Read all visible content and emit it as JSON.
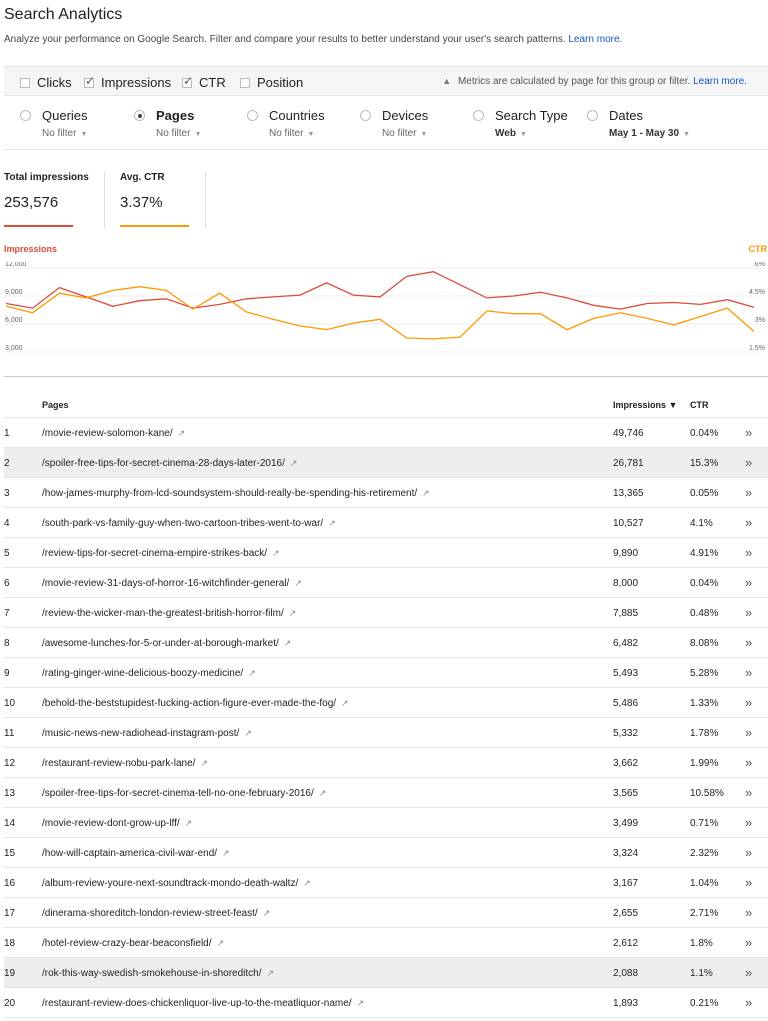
{
  "header": {
    "title": "Search Analytics",
    "subtitle": "Analyze your performance on Google Search. Filter and compare your results to better understand your user's search patterns.",
    "learn_more": "Learn more."
  },
  "metrics": {
    "items": [
      {
        "label": "Clicks",
        "checked": false
      },
      {
        "label": "Impressions",
        "checked": true
      },
      {
        "label": "CTR",
        "checked": true
      },
      {
        "label": "Position",
        "checked": false
      }
    ],
    "note": "Metrics are calculated by page for this group or filter.",
    "note_link": "Learn more."
  },
  "dimensions": [
    {
      "label": "Queries",
      "filter": "No filter",
      "selected": false
    },
    {
      "label": "Pages",
      "filter": "No filter",
      "selected": true
    },
    {
      "label": "Countries",
      "filter": "No filter",
      "selected": false
    },
    {
      "label": "Devices",
      "filter": "No filter",
      "selected": false
    },
    {
      "label": "Search Type",
      "filter": "Web",
      "selected": false
    },
    {
      "label": "Dates",
      "filter": "May 1 - May 30",
      "selected": false
    }
  ],
  "totals": {
    "impressions_label": "Total impressions",
    "impressions_value": "253,576",
    "ctr_label": "Avg. CTR",
    "ctr_value": "3.37%"
  },
  "colors": {
    "impressions": "#dd4b39",
    "ctr": "#ff9900",
    "link": "#1155cc"
  },
  "chart_data": {
    "type": "line",
    "left_axis_label": "Impressions",
    "right_axis_label": "CTR",
    "left_ticks": [
      "12,000",
      "9,000",
      "6,000",
      "3,000"
    ],
    "right_ticks": [
      "6%",
      "4.5%",
      "3%",
      "1.5%"
    ],
    "left_ylim": [
      3000,
      12000
    ],
    "right_ylim": [
      1.5,
      6
    ],
    "series": [
      {
        "name": "Impressions",
        "axis": "left",
        "values": [
          8200,
          7700,
          9900,
          8900,
          7900,
          8500,
          8700,
          7700,
          8100,
          8700,
          8900,
          9100,
          10400,
          9100,
          8900,
          11100,
          11600,
          10200,
          8800,
          9000,
          9400,
          8800,
          8000,
          7600,
          8200,
          8300,
          8100,
          8600,
          7800
        ]
      },
      {
        "name": "CTR",
        "axis": "left",
        "values": [
          7900,
          7200,
          9300,
          8800,
          9600,
          10000,
          9600,
          7600,
          9300,
          7300,
          6500,
          5800,
          5400,
          6100,
          6500,
          4500,
          4400,
          4600,
          7400,
          7100,
          7100,
          5400,
          6600,
          7200,
          6600,
          5900,
          6800,
          7700,
          5200
        ]
      }
    ]
  },
  "table": {
    "headers": {
      "pages": "Pages",
      "impressions": "Impressions ▼",
      "ctr": "CTR"
    },
    "rows": [
      {
        "n": "1",
        "page": "/movie-review-solomon-kane/",
        "impressions": "49,746",
        "ctr": "0.04%",
        "hl": false
      },
      {
        "n": "2",
        "page": "/spoiler-free-tips-for-secret-cinema-28-days-later-2016/",
        "impressions": "26,781",
        "ctr": "15.3%",
        "hl": true
      },
      {
        "n": "3",
        "page": "/how-james-murphy-from-lcd-soundsystem-should-really-be-spending-his-retirement/",
        "impressions": "13,365",
        "ctr": "0.05%",
        "hl": false
      },
      {
        "n": "4",
        "page": "/south-park-vs-family-guy-when-two-cartoon-tribes-went-to-war/",
        "impressions": "10,527",
        "ctr": "4.1%",
        "hl": false
      },
      {
        "n": "5",
        "page": "/review-tips-for-secret-cinema-empire-strikes-back/",
        "impressions": "9,890",
        "ctr": "4.91%",
        "hl": false
      },
      {
        "n": "6",
        "page": "/movie-review-31-days-of-horror-16-witchfinder-general/",
        "impressions": "8,000",
        "ctr": "0.04%",
        "hl": false
      },
      {
        "n": "7",
        "page": "/review-the-wicker-man-the-greatest-british-horror-film/",
        "impressions": "7,885",
        "ctr": "0.48%",
        "hl": false
      },
      {
        "n": "8",
        "page": "/awesome-lunches-for-5-or-under-at-borough-market/",
        "impressions": "6,482",
        "ctr": "8.08%",
        "hl": false
      },
      {
        "n": "9",
        "page": "/rating-ginger-wine-delicious-boozy-medicine/",
        "impressions": "5,493",
        "ctr": "5.28%",
        "hl": false
      },
      {
        "n": "10",
        "page": "/behold-the-beststupidest-fucking-action-figure-ever-made-the-fog/",
        "impressions": "5,486",
        "ctr": "1.33%",
        "hl": false
      },
      {
        "n": "11",
        "page": "/music-news-new-radiohead-instagram-post/",
        "impressions": "5,332",
        "ctr": "1.78%",
        "hl": false
      },
      {
        "n": "12",
        "page": "/restaurant-review-nobu-park-lane/",
        "impressions": "3,662",
        "ctr": "1.99%",
        "hl": false
      },
      {
        "n": "13",
        "page": "/spoiler-free-tips-for-secret-cinema-tell-no-one-february-2016/",
        "impressions": "3,565",
        "ctr": "10.58%",
        "hl": false
      },
      {
        "n": "14",
        "page": "/movie-review-dont-grow-up-lff/",
        "impressions": "3,499",
        "ctr": "0.71%",
        "hl": false
      },
      {
        "n": "15",
        "page": "/how-will-captain-america-civil-war-end/",
        "impressions": "3,324",
        "ctr": "2.32%",
        "hl": false
      },
      {
        "n": "16",
        "page": "/album-review-youre-next-soundtrack-mondo-death-waltz/",
        "impressions": "3,167",
        "ctr": "1.04%",
        "hl": false
      },
      {
        "n": "17",
        "page": "/dinerama-shoreditch-london-review-street-feast/",
        "impressions": "2,655",
        "ctr": "2.71%",
        "hl": false
      },
      {
        "n": "18",
        "page": "/hotel-review-crazy-bear-beaconsfield/",
        "impressions": "2,612",
        "ctr": "1.8%",
        "hl": false
      },
      {
        "n": "19",
        "page": "/rok-this-way-swedish-smokehouse-in-shoreditch/",
        "impressions": "2,088",
        "ctr": "1.1%",
        "hl": true
      },
      {
        "n": "20",
        "page": "/restaurant-review-does-chickenliquor-live-up-to-the-meatliquor-name/",
        "impressions": "1,893",
        "ctr": "0.21%",
        "hl": false
      }
    ]
  }
}
